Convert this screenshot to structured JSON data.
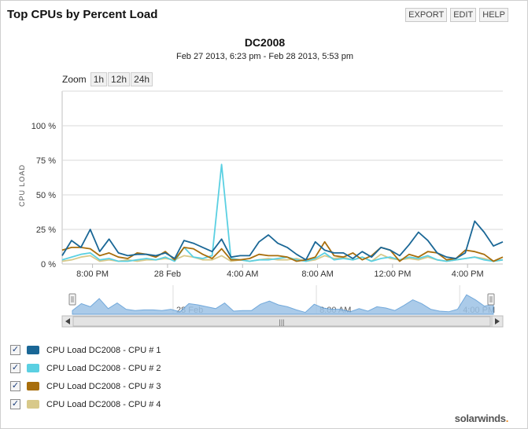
{
  "widget": {
    "title": "Top CPUs by Percent Load",
    "buttons": [
      "EXPORT",
      "EDIT",
      "HELP"
    ],
    "brand": "solarwinds"
  },
  "zoom": {
    "label": "Zoom",
    "buttons": [
      "1h",
      "12h",
      "24h"
    ]
  },
  "navigator": {
    "tick_labels": [
      "28 Feb",
      "8:00 AM",
      "4:00 PM"
    ],
    "color": "#5b9bd5",
    "scrollbar_grip": "|||"
  },
  "icons": {
    "checkbox": "checkbox-icon",
    "scroll_left": "arrow-left-icon",
    "scroll_right": "arrow-right-icon",
    "handle": "drag-handle-icon"
  },
  "chart_data": {
    "type": "line",
    "title": "DC2008",
    "subtitle": "Feb 27 2013, 6:23 pm - Feb 28 2013, 5:53 pm",
    "ylabel": "CPU LOAD",
    "xlabel": "",
    "ylim": [
      0,
      125
    ],
    "y_ticks": [
      0,
      25,
      50,
      75,
      100
    ],
    "y_tick_labels": [
      "0 %",
      "25 %",
      "50 %",
      "75 %",
      "100 %"
    ],
    "x_range_hours": [
      18.38,
      41.88
    ],
    "x_ticks": [
      20,
      24,
      28,
      32,
      36,
      40
    ],
    "x_tick_labels": [
      "8:00 PM",
      "28 Feb",
      "4:00 AM",
      "8:00 AM",
      "12:00 PM",
      "4:00 PM"
    ],
    "grid": true,
    "legend_placement": "bottom-left",
    "x": [
      18.38,
      18.88,
      19.38,
      19.88,
      20.38,
      20.88,
      21.38,
      21.88,
      22.38,
      22.88,
      23.38,
      23.88,
      24.38,
      24.88,
      25.38,
      25.88,
      26.38,
      26.88,
      27.38,
      27.88,
      28.38,
      28.88,
      29.38,
      29.88,
      30.38,
      30.88,
      31.38,
      31.88,
      32.38,
      32.88,
      33.38,
      33.88,
      34.38,
      34.88,
      35.38,
      35.88,
      36.38,
      36.88,
      37.38,
      37.88,
      38.38,
      38.88,
      39.38,
      39.88,
      40.38,
      40.88,
      41.38,
      41.88
    ],
    "series": [
      {
        "name": "CPU Load DC2008 - CPU # 1",
        "color": "#1a6796",
        "values": [
          6,
          17,
          12,
          25,
          9,
          18,
          8,
          6,
          7,
          7,
          6,
          8,
          4,
          17,
          15,
          12,
          9,
          18,
          5,
          6,
          6,
          16,
          21,
          15,
          12,
          7,
          3,
          16,
          10,
          8,
          8,
          4,
          9,
          5,
          12,
          10,
          6,
          14,
          23,
          17,
          8,
          5,
          4,
          8,
          31,
          23,
          13,
          16
        ]
      },
      {
        "name": "CPU Load DC2008 - CPU # 2",
        "color": "#5bd0e2",
        "values": [
          3,
          5,
          7,
          8,
          3,
          4,
          2,
          2,
          3,
          4,
          3,
          5,
          2,
          12,
          5,
          4,
          6,
          72,
          4,
          3,
          2,
          3,
          3,
          4,
          5,
          3,
          2,
          4,
          8,
          3,
          4,
          3,
          5,
          2,
          4,
          5,
          3,
          5,
          4,
          6,
          3,
          2,
          3,
          4,
          5,
          3,
          2,
          3
        ]
      },
      {
        "name": "CPU Load DC2008 - CPU # 3",
        "color": "#a86e0c",
        "values": [
          10,
          12,
          12,
          11,
          6,
          8,
          5,
          4,
          8,
          7,
          5,
          9,
          3,
          12,
          11,
          7,
          4,
          11,
          3,
          3,
          4,
          7,
          6,
          6,
          5,
          2,
          3,
          5,
          16,
          6,
          5,
          8,
          3,
          6,
          12,
          10,
          2,
          7,
          5,
          9,
          8,
          3,
          4,
          10,
          9,
          7,
          2,
          5
        ]
      },
      {
        "name": "CPU Load DC2008 - CPU # 4",
        "color": "#d8c98a",
        "values": [
          2,
          3,
          5,
          6,
          2,
          3,
          2,
          3,
          2,
          3,
          3,
          4,
          3,
          6,
          5,
          3,
          3,
          6,
          2,
          3,
          2,
          3,
          4,
          3,
          3,
          4,
          2,
          3,
          6,
          4,
          5,
          3,
          5,
          2,
          7,
          4,
          3,
          4,
          3,
          5,
          3,
          2,
          3,
          4,
          5,
          4,
          2,
          3
        ]
      }
    ]
  }
}
